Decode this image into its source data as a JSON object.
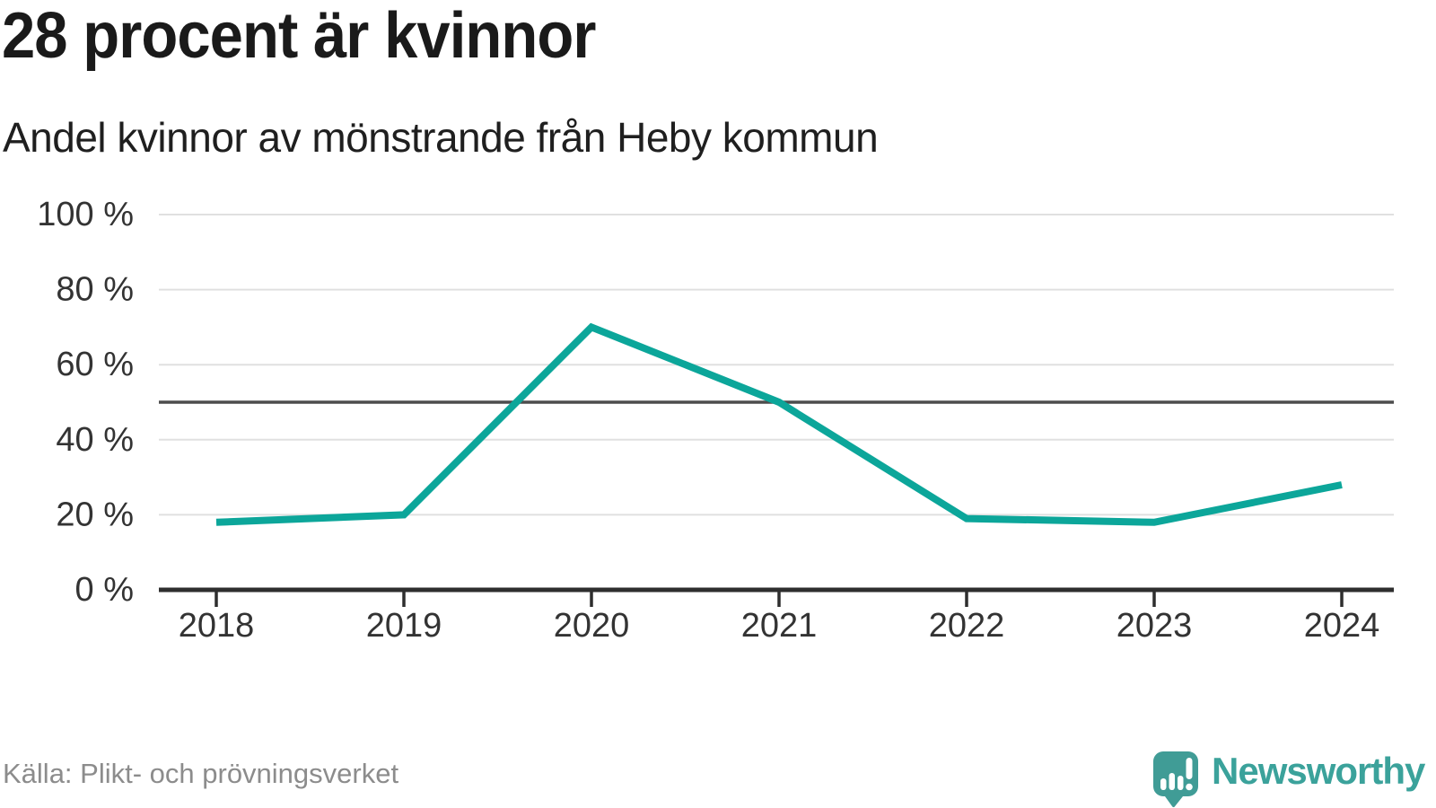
{
  "header": {
    "title": "28 procent är kvinnor",
    "subtitle": "Andel kvinnor av mönstrande från Heby kommun"
  },
  "footer": {
    "source": "Källa: Plikt- och prövningsverket",
    "brand": "Newsworthy"
  },
  "colors": {
    "line": "#0ca69a",
    "grid": "#e0e0e0",
    "axis": "#2e2e2e",
    "reference_line": "#4d4d4d",
    "tick_text": "#333333",
    "title_text": "#1a1a1a",
    "source_text": "#8c8c8c",
    "brand_teal": "#3ba29b",
    "logo_bubble": "#409c96"
  },
  "chart_data": {
    "type": "line",
    "title": "28 procent är kvinnor",
    "subtitle": "Andel kvinnor av mönstrande från Heby kommun",
    "source": "Källa: Plikt- och prövningsverket",
    "categories": [
      "2018",
      "2019",
      "2020",
      "2021",
      "2022",
      "2023",
      "2024"
    ],
    "series": [
      {
        "name": "Andel kvinnor av mönstrande",
        "color": "#0ca69a",
        "values": [
          18,
          20,
          70,
          50,
          19,
          18,
          28
        ]
      }
    ],
    "ylim": [
      0,
      100
    ],
    "yticks": [
      {
        "value": 0,
        "label": "0 %"
      },
      {
        "value": 20,
        "label": "20 %"
      },
      {
        "value": 40,
        "label": "40 %"
      },
      {
        "value": 60,
        "label": "60 %"
      },
      {
        "value": 80,
        "label": "80 %"
      },
      {
        "value": 100,
        "label": "100 %"
      }
    ],
    "unit": "%",
    "reference_line": {
      "value": 50
    },
    "grid": true,
    "legend": "none"
  }
}
